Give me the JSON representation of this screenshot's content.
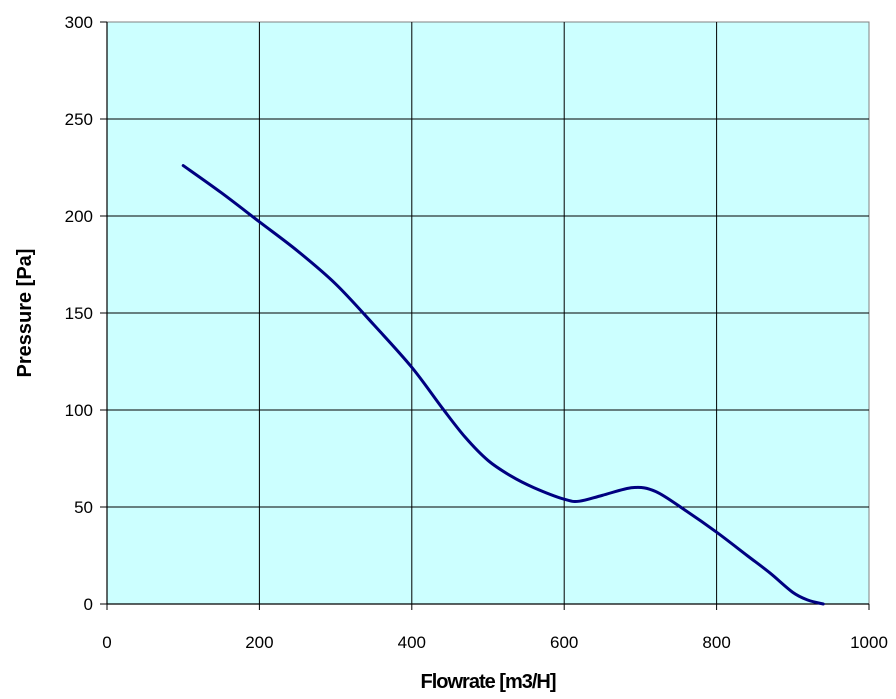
{
  "chart_data": {
    "type": "line",
    "title": "",
    "xlabel": "Flowrate [m3/H]",
    "ylabel": "Pressure [Pa]",
    "xlim": [
      0,
      1000
    ],
    "ylim": [
      0,
      300
    ],
    "x_ticks": [
      "0",
      "200",
      "400",
      "600",
      "800",
      "1000"
    ],
    "y_ticks": [
      "0",
      "50",
      "100",
      "150",
      "200",
      "250",
      "300"
    ],
    "grid": true,
    "legend": "none",
    "colors": {
      "plot_background": "#ccffff",
      "grid": "#000000",
      "line": "#000080"
    },
    "series": [
      {
        "x": [
          100,
          150,
          200,
          250,
          300,
          350,
          400,
          440,
          470,
          500,
          530,
          560,
          600,
          620,
          650,
          690,
          720,
          760,
          800,
          840,
          870,
          900,
          920,
          940
        ],
        "y": [
          226,
          212,
          197,
          182,
          165,
          144,
          122,
          101,
          86,
          74,
          66,
          60,
          54,
          53,
          56,
          60,
          58,
          48,
          37,
          25,
          16,
          6,
          2,
          0
        ]
      }
    ]
  }
}
